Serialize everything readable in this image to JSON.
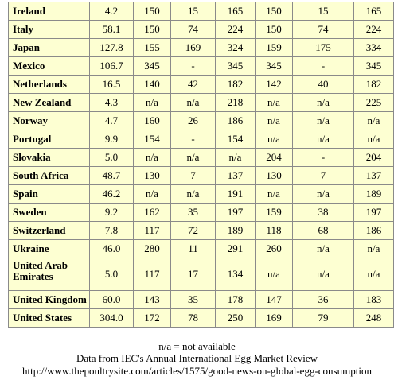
{
  "table": {
    "rows": [
      [
        "Ireland",
        "4.2",
        "150",
        "15",
        "165",
        "150",
        "15",
        "165"
      ],
      [
        "Italy",
        "58.1",
        "150",
        "74",
        "224",
        "150",
        "74",
        "224"
      ],
      [
        "Japan",
        "127.8",
        "155",
        "169",
        "324",
        "159",
        "175",
        "334"
      ],
      [
        "Mexico",
        "106.7",
        "345",
        "-",
        "345",
        "345",
        "-",
        "345"
      ],
      [
        "Netherlands",
        "16.5",
        "140",
        "42",
        "182",
        "142",
        "40",
        "182"
      ],
      [
        "New Zealand",
        "4.3",
        "n/a",
        "n/a",
        "218",
        "n/a",
        "n/a",
        "225"
      ],
      [
        "Norway",
        "4.7",
        "160",
        "26",
        "186",
        "n/a",
        "n/a",
        "n/a"
      ],
      [
        "Portugal",
        "9.9",
        "154",
        "-",
        "154",
        "n/a",
        "n/a",
        "n/a"
      ],
      [
        "Slovakia",
        "5.0",
        "n/a",
        "n/a",
        "n/a",
        "204",
        "-",
        "204"
      ],
      [
        "South Africa",
        "48.7",
        "130",
        "7",
        "137",
        "130",
        "7",
        "137"
      ],
      [
        "Spain",
        "46.2",
        "n/a",
        "n/a",
        "191",
        "n/a",
        "n/a",
        "189"
      ],
      [
        "Sweden",
        "9.2",
        "162",
        "35",
        "197",
        "159",
        "38",
        "197"
      ],
      [
        "Switzerland",
        "7.8",
        "117",
        "72",
        "189",
        "118",
        "68",
        "186"
      ],
      [
        "Ukraine",
        "46.0",
        "280",
        "11",
        "291",
        "260",
        "n/a",
        "n/a"
      ],
      [
        "United Arab Emirates",
        "5.0",
        "117",
        "17",
        "134",
        "n/a",
        "n/a",
        "n/a"
      ],
      [
        "United Kingdom",
        "60.0",
        "143",
        "35",
        "178",
        "147",
        "36",
        "183"
      ],
      [
        "United States",
        "304.0",
        "172",
        "78",
        "250",
        "169",
        "79",
        "248"
      ]
    ]
  },
  "footer": {
    "note": "n/a = not available",
    "source": "Data from IEC's Annual International Egg Market Review",
    "url": "http://www.thepoultrysite.com/articles/1575/good-news-on-global-egg-consumption"
  }
}
